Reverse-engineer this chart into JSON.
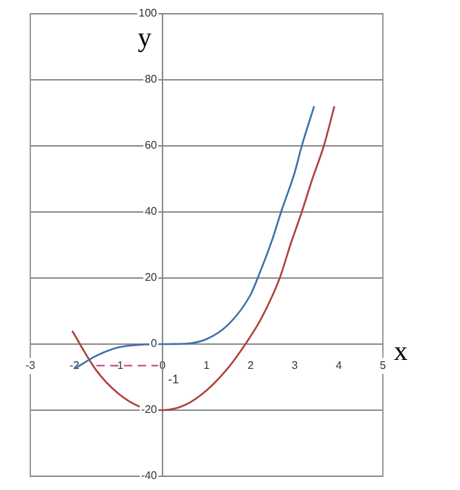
{
  "chart_data": {
    "type": "line",
    "xlabel": "x",
    "ylabel": "y",
    "xlim": [
      -3,
      5
    ],
    "xticks": [
      -3,
      -2,
      -1,
      0,
      1,
      2,
      3,
      4,
      5
    ],
    "ylim": [
      -40,
      100
    ],
    "yticks": [
      -40,
      -20,
      0,
      20,
      40,
      60,
      80,
      100
    ],
    "grid": "y",
    "legend": false,
    "marker": "none",
    "annotations": [
      "-1"
    ],
    "series": [
      {
        "color": "#3f6fa8",
        "x": [
          -2,
          -1.5,
          -1,
          -0.5,
          0,
          0.5,
          1,
          1.5,
          2,
          2.16,
          2.5,
          2.69,
          3,
          3.16,
          3.44
        ],
        "values": [
          -7.5,
          -3.5,
          -1,
          -0.2,
          0,
          0.1,
          1.5,
          6,
          15,
          20,
          32,
          40,
          52,
          60,
          72
        ]
      },
      {
        "color": "#b0413e",
        "x": [
          -2.05,
          -1.5,
          -1,
          -0.5,
          0,
          0.5,
          1,
          1.5,
          1.88,
          2.25,
          2.66,
          2.9,
          3.16,
          3.4,
          3.66,
          3.9
        ],
        "values": [
          4,
          -8,
          -15,
          -19,
          -20,
          -18.5,
          -14,
          -7,
          0,
          8,
          20,
          30,
          40,
          50,
          60,
          72
        ]
      },
      {
        "color": "#d6589a",
        "line_style": "dashed",
        "x": [
          -1.5,
          -0.1
        ],
        "values": [
          -6.5,
          -6.5
        ]
      }
    ]
  }
}
